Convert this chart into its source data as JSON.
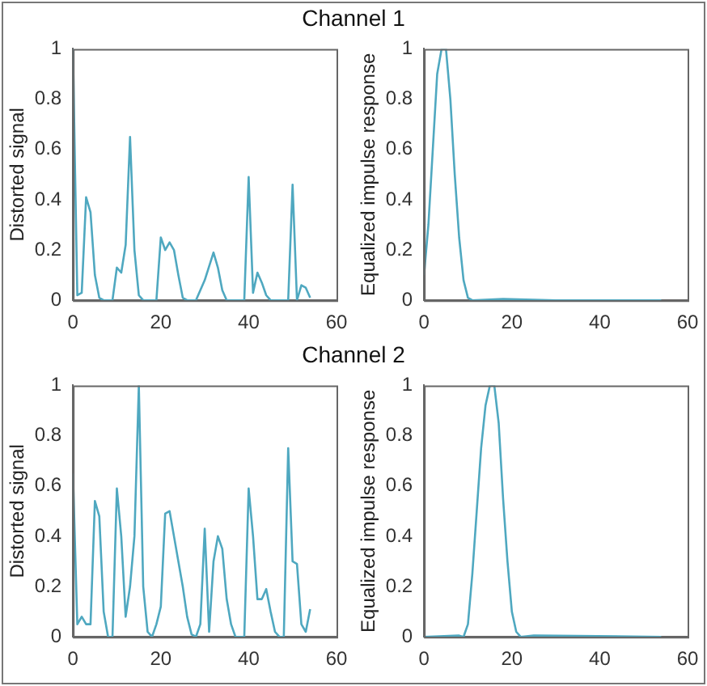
{
  "chart_data": [
    {
      "type": "line",
      "title": "Channel 1",
      "ylabel": "Distorted signal",
      "xlim": [
        0,
        60
      ],
      "ylim": [
        0,
        1
      ],
      "xticks": [
        0,
        20,
        40,
        60
      ],
      "yticks": [
        0,
        0.2,
        0.4,
        0.6,
        0.8,
        1
      ],
      "grid": false,
      "legend": false,
      "marker": "none",
      "series": [
        {
          "color": "#4fa8c0",
          "x": [
            0,
            0.5,
            1,
            2,
            3,
            4,
            5,
            6,
            7,
            9,
            10,
            11,
            12,
            13,
            14,
            15,
            16,
            19,
            20,
            21,
            22,
            23,
            24,
            25,
            26,
            28,
            30,
            32,
            33,
            34,
            35,
            39,
            40,
            41,
            42,
            43,
            44,
            45,
            49,
            50,
            51,
            52,
            53,
            54
          ],
          "values": [
            1,
            0.5,
            0.02,
            0.03,
            0.41,
            0.35,
            0.1,
            0.01,
            0,
            0,
            0.13,
            0.11,
            0.22,
            0.65,
            0.2,
            0.02,
            0,
            0,
            0.25,
            0.2,
            0.23,
            0.2,
            0.1,
            0.01,
            0,
            0,
            0.08,
            0.19,
            0.13,
            0.04,
            0,
            0,
            0.49,
            0.03,
            0.11,
            0.07,
            0.02,
            0,
            0,
            0.46,
            0,
            0.06,
            0.05,
            0.01
          ]
        }
      ]
    },
    {
      "type": "line",
      "ylabel": "Equalized impulse response",
      "xlim": [
        0,
        60
      ],
      "ylim": [
        0,
        1
      ],
      "xticks": [
        0,
        20,
        40,
        60
      ],
      "yticks": [
        0,
        0.2,
        0.4,
        0.6,
        0.8,
        1
      ],
      "grid": false,
      "legend": false,
      "marker": "none",
      "series": [
        {
          "color": "#4fa8c0",
          "x": [
            0,
            1,
            2,
            3,
            4,
            5,
            6,
            7,
            8,
            9,
            10,
            11,
            18,
            30,
            54
          ],
          "values": [
            0.1,
            0.3,
            0.6,
            0.9,
            1,
            1,
            0.8,
            0.5,
            0.25,
            0.08,
            0.01,
            0,
            0.005,
            0,
            0
          ]
        }
      ]
    },
    {
      "type": "line",
      "title": "Channel 2",
      "ylabel": "Distorted signal",
      "xlim": [
        0,
        60
      ],
      "ylim": [
        0,
        1
      ],
      "xticks": [
        0,
        20,
        40,
        60
      ],
      "yticks": [
        0,
        0.2,
        0.4,
        0.6,
        0.8,
        1
      ],
      "grid": false,
      "legend": false,
      "marker": "none",
      "series": [
        {
          "color": "#4fa8c0",
          "x": [
            0,
            1,
            2,
            3,
            4,
            5,
            6,
            7,
            8,
            9,
            10,
            11,
            12,
            13,
            14,
            15,
            16,
            17,
            18,
            19,
            20,
            21,
            22,
            23,
            24,
            25,
            26,
            27,
            28,
            29,
            30,
            31,
            32,
            33,
            34,
            35,
            36,
            37,
            39,
            40,
            41,
            42,
            43,
            44,
            45,
            46,
            47,
            48,
            49,
            50,
            51,
            52,
            53,
            54
          ],
          "values": [
            0.65,
            0.05,
            0.08,
            0.05,
            0.05,
            0.54,
            0.48,
            0.1,
            0,
            0,
            0.59,
            0.4,
            0.08,
            0.2,
            0.4,
            1,
            0.2,
            0.02,
            0,
            0.05,
            0.12,
            0.49,
            0.5,
            0.4,
            0.3,
            0.2,
            0.08,
            0.01,
            0,
            0.05,
            0.43,
            0.02,
            0.3,
            0.4,
            0.35,
            0.15,
            0.05,
            0,
            0,
            0.59,
            0.4,
            0.15,
            0.15,
            0.19,
            0.1,
            0.02,
            0,
            0,
            0.75,
            0.3,
            0.29,
            0.05,
            0.02,
            0.11
          ]
        }
      ]
    },
    {
      "type": "line",
      "ylabel": "Equalized impulse response",
      "xlim": [
        0,
        60
      ],
      "ylim": [
        0,
        1
      ],
      "xticks": [
        0,
        20,
        40,
        60
      ],
      "yticks": [
        0,
        0.2,
        0.4,
        0.6,
        0.8,
        1
      ],
      "grid": false,
      "legend": false,
      "marker": "none",
      "series": [
        {
          "color": "#4fa8c0",
          "x": [
            0,
            8,
            9,
            10,
            11,
            12,
            13,
            14,
            15,
            16,
            17,
            18,
            19,
            20,
            21,
            22,
            25,
            54
          ],
          "values": [
            0,
            0.005,
            0,
            0.05,
            0.25,
            0.5,
            0.75,
            0.92,
            1,
            1,
            0.85,
            0.55,
            0.3,
            0.1,
            0.02,
            0,
            0.005,
            0
          ]
        }
      ]
    }
  ]
}
